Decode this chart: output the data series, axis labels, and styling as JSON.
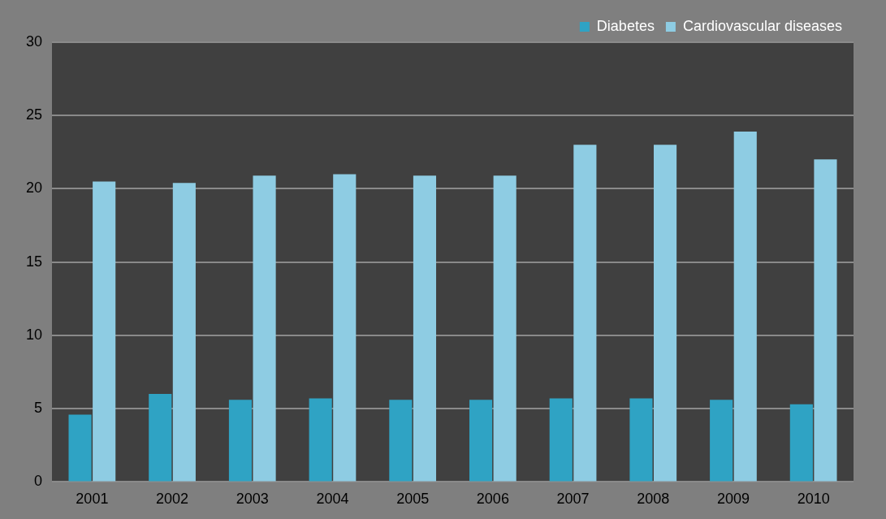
{
  "chart_data": {
    "type": "bar",
    "categories": [
      "2001",
      "2002",
      "2003",
      "2004",
      "2005",
      "2006",
      "2007",
      "2008",
      "2009",
      "2010"
    ],
    "series": [
      {
        "name": "Diabetes",
        "color": "#2fa3c4",
        "values": [
          4.6,
          6.0,
          5.6,
          5.7,
          5.6,
          5.6,
          5.7,
          5.7,
          5.6,
          5.3
        ]
      },
      {
        "name": "Cardiovascular diseases",
        "color": "#8ecce3",
        "values": [
          20.5,
          20.4,
          20.9,
          21.0,
          20.9,
          20.9,
          23.0,
          23.0,
          23.9,
          22.0
        ]
      }
    ],
    "ylim": [
      0,
      30
    ],
    "yticks": [
      0,
      5,
      10,
      15,
      20,
      25,
      30
    ],
    "grid": "y",
    "legend": "top right"
  }
}
